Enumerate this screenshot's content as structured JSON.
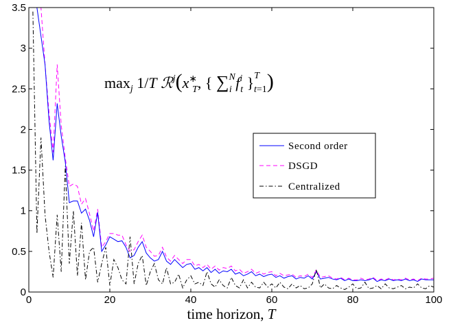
{
  "chart_data": {
    "type": "line",
    "title": "",
    "xlabel": "time horizon, T",
    "ylabel": "",
    "xlim": [
      0,
      100
    ],
    "ylim": [
      0,
      3.5
    ],
    "xticks": [
      "0",
      "20",
      "40",
      "60",
      "80",
      "100"
    ],
    "yticks": [
      "0",
      "0.5",
      "1",
      "1.5",
      "2",
      "2.5",
      "3",
      "3.5"
    ],
    "grid": false,
    "legend_position": "center-right",
    "annotation": "max_j 1/T R^j(x*_T, { Σ_i^N f_t^i }_{t=1}^T)",
    "x": [
      1,
      2,
      3,
      4,
      5,
      6,
      7,
      8,
      9,
      10,
      11,
      12,
      13,
      14,
      15,
      16,
      17,
      18,
      19,
      20,
      21,
      22,
      23,
      24,
      25,
      26,
      27,
      28,
      29,
      30,
      31,
      32,
      33,
      34,
      35,
      36,
      37,
      38,
      39,
      40,
      41,
      42,
      43,
      44,
      45,
      46,
      47,
      48,
      49,
      50,
      51,
      52,
      53,
      54,
      55,
      56,
      57,
      58,
      59,
      60,
      61,
      62,
      63,
      64,
      65,
      66,
      67,
      68,
      69,
      70,
      71,
      72,
      73,
      74,
      75,
      76,
      77,
      78,
      79,
      80,
      81,
      82,
      83,
      84,
      85,
      86,
      87,
      88,
      89,
      90,
      91,
      92,
      93,
      94,
      95,
      96,
      97,
      98,
      99,
      100
    ],
    "series": [
      {
        "name": "Second order",
        "color": "#0000ff",
        "dash": "solid",
        "values": [
          3.5,
          3.5,
          3.15,
          2.8,
          2.1,
          1.62,
          2.32,
          1.92,
          1.6,
          1.1,
          1.12,
          1.12,
          0.97,
          1.02,
          0.88,
          0.68,
          0.98,
          0.5,
          0.58,
          0.68,
          0.65,
          0.62,
          0.63,
          0.55,
          0.42,
          0.45,
          0.55,
          0.62,
          0.48,
          0.42,
          0.38,
          0.4,
          0.5,
          0.38,
          0.34,
          0.4,
          0.35,
          0.3,
          0.34,
          0.35,
          0.28,
          0.3,
          0.26,
          0.3,
          0.24,
          0.28,
          0.23,
          0.26,
          0.25,
          0.28,
          0.22,
          0.24,
          0.2,
          0.22,
          0.25,
          0.2,
          0.22,
          0.19,
          0.21,
          0.22,
          0.18,
          0.2,
          0.17,
          0.19,
          0.2,
          0.16,
          0.18,
          0.17,
          0.2,
          0.16,
          0.25,
          0.16,
          0.17,
          0.18,
          0.16,
          0.15,
          0.17,
          0.14,
          0.16,
          0.14,
          0.14,
          0.15,
          0.14,
          0.15,
          0.17,
          0.13,
          0.15,
          0.14,
          0.16,
          0.14,
          0.15,
          0.14,
          0.16,
          0.14,
          0.15,
          0.13,
          0.16,
          0.15,
          0.15,
          0.15
        ]
      },
      {
        "name": "DSGD",
        "color": "#ff00ff",
        "dash": "dashed",
        "values": [
          3.5,
          3.5,
          3.5,
          2.8,
          2.2,
          1.72,
          2.8,
          2.05,
          1.65,
          1.3,
          1.33,
          1.3,
          1.08,
          1.15,
          0.96,
          0.75,
          1.02,
          0.55,
          0.62,
          0.72,
          0.72,
          0.7,
          0.7,
          0.58,
          0.5,
          0.52,
          0.62,
          0.7,
          0.55,
          0.5,
          0.44,
          0.45,
          0.55,
          0.43,
          0.38,
          0.45,
          0.4,
          0.35,
          0.4,
          0.4,
          0.32,
          0.34,
          0.3,
          0.34,
          0.28,
          0.32,
          0.27,
          0.3,
          0.29,
          0.32,
          0.26,
          0.28,
          0.23,
          0.25,
          0.28,
          0.23,
          0.25,
          0.22,
          0.24,
          0.25,
          0.2,
          0.23,
          0.2,
          0.21,
          0.22,
          0.18,
          0.2,
          0.19,
          0.22,
          0.18,
          0.27,
          0.18,
          0.19,
          0.2,
          0.17,
          0.16,
          0.18,
          0.15,
          0.17,
          0.15,
          0.15,
          0.17,
          0.15,
          0.16,
          0.18,
          0.14,
          0.16,
          0.15,
          0.17,
          0.15,
          0.16,
          0.15,
          0.17,
          0.15,
          0.16,
          0.14,
          0.17,
          0.16,
          0.16,
          0.17
        ]
      },
      {
        "name": "Centralized",
        "color": "#000000",
        "dash": "dashdot",
        "values": [
          3.45,
          0.72,
          1.9,
          0.95,
          0.5,
          0.18,
          0.95,
          0.25,
          1.55,
          0.35,
          1.0,
          0.2,
          0.85,
          0.15,
          0.5,
          0.55,
          0.12,
          0.35,
          0.55,
          0.08,
          0.4,
          0.3,
          0.15,
          0.1,
          0.68,
          0.1,
          0.35,
          0.45,
          0.08,
          0.25,
          0.35,
          0.15,
          0.1,
          0.3,
          0.1,
          0.12,
          0.22,
          0.05,
          0.15,
          0.2,
          0.1,
          0.12,
          0.08,
          0.25,
          0.1,
          0.06,
          0.15,
          0.08,
          0.05,
          0.18,
          0.08,
          0.05,
          0.15,
          0.05,
          0.12,
          0.06,
          0.05,
          0.12,
          0.06,
          0.1,
          0.05,
          0.12,
          0.06,
          0.04,
          0.1,
          0.05,
          0.08,
          0.04,
          0.05,
          0.1,
          0.28,
          0.05,
          0.1,
          0.05,
          0.04,
          0.08,
          0.05,
          0.03,
          0.06,
          0.1,
          0.04,
          0.05,
          0.12,
          0.04,
          0.05,
          0.08,
          0.04,
          0.1,
          0.05,
          0.04,
          0.06,
          0.08,
          0.04,
          0.06,
          0.05,
          0.1,
          0.05,
          0.04,
          0.08,
          0.06
        ]
      }
    ]
  }
}
